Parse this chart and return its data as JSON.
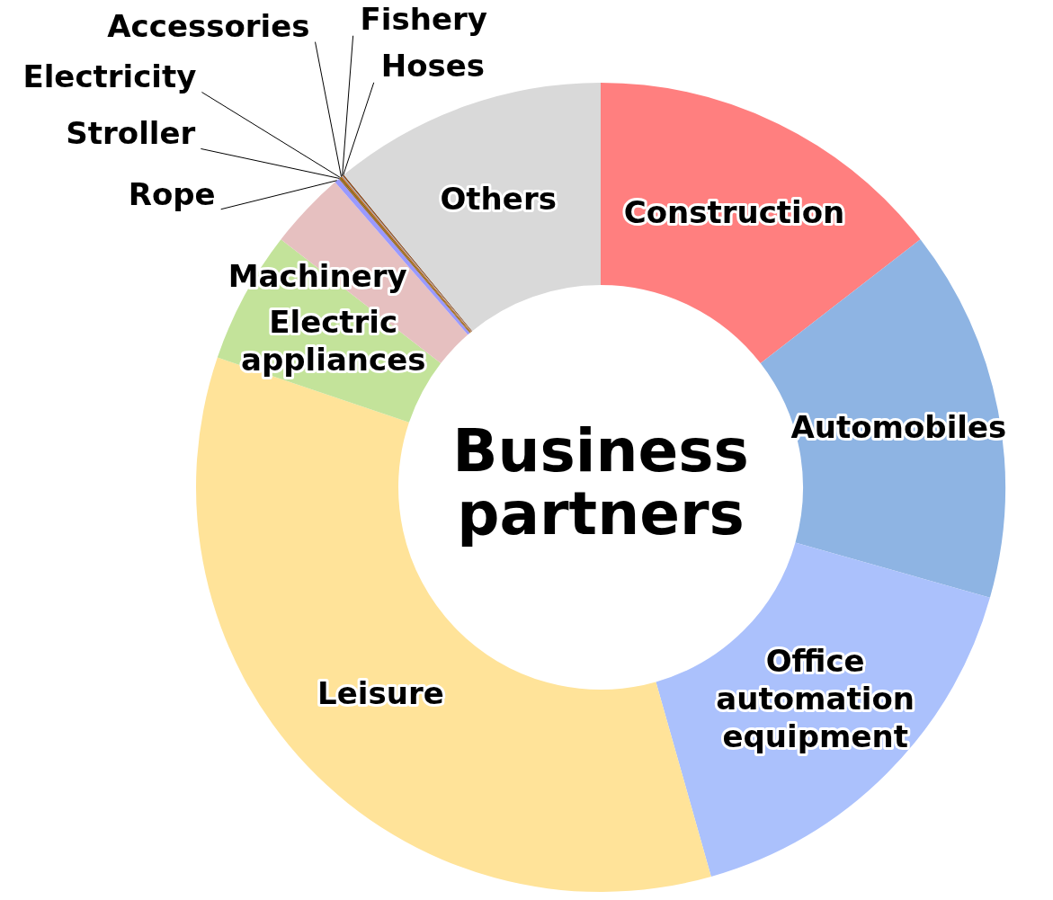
{
  "chart_data": {
    "type": "donut",
    "title": "Business partners",
    "categories": [
      "Construction",
      "Automobiles",
      "Office automation equipment",
      "Leisure",
      "Electric appliances",
      "Machinery",
      "Rope",
      "Stroller",
      "Electricity",
      "Accessories",
      "Fishery",
      "Hoses",
      "Others"
    ],
    "values": [
      14.5,
      14.9,
      16.2,
      34.6,
      5.3,
      3.1,
      0.2,
      0.05,
      0.05,
      0.05,
      0.05,
      0.05,
      10.95
    ],
    "colors": [
      "#ff7f7f",
      "#8eb4e3",
      "#abc1fc",
      "#ffe399",
      "#c3e39a",
      "#e6c0c0",
      "#9999ff",
      "#996633",
      "#7f6000",
      "#c55a11",
      "#a5a5a5",
      "#843c0c",
      "#d9d9d9"
    ],
    "legend": false
  }
}
